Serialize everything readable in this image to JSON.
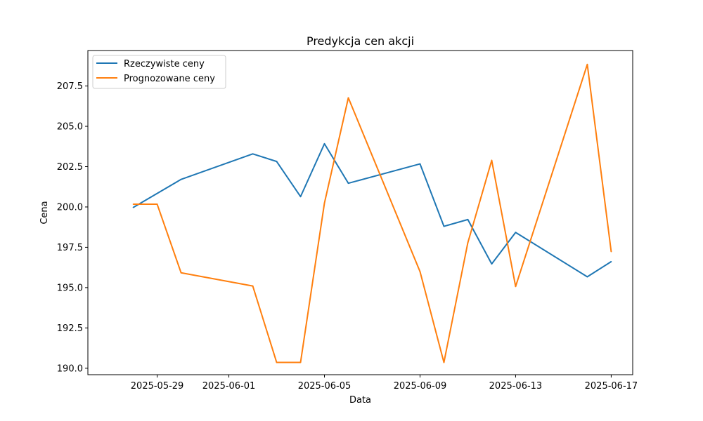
{
  "chart_data": {
    "type": "line",
    "title": "Predykcja cen akcji",
    "xlabel": "Data",
    "ylabel": "Cena",
    "xlim": [
      "2025-05-26",
      "2025-06-18"
    ],
    "ylim": [
      189.6,
      209.7
    ],
    "x_ticks": [
      "2025-05-29",
      "2025-06-01",
      "2025-06-05",
      "2025-06-09",
      "2025-06-13",
      "2025-06-17"
    ],
    "y_ticks": [
      "190.0",
      "192.5",
      "195.0",
      "197.5",
      "200.0",
      "202.5",
      "205.0",
      "207.5"
    ],
    "grid": false,
    "legend_position": "top-left",
    "series": [
      {
        "name": "Rzeczywiste ceny",
        "color": "#1f77b4",
        "points": [
          {
            "x": "2025-05-28",
            "y": 199.97
          },
          {
            "x": "2025-05-30",
            "y": 201.71
          },
          {
            "x": "2025-06-02",
            "y": 203.29
          },
          {
            "x": "2025-06-03",
            "y": 202.82
          },
          {
            "x": "2025-06-04",
            "y": 200.64
          },
          {
            "x": "2025-06-05",
            "y": 203.92
          },
          {
            "x": "2025-06-06",
            "y": 201.47
          },
          {
            "x": "2025-06-09",
            "y": 202.67
          },
          {
            "x": "2025-06-10",
            "y": 198.8
          },
          {
            "x": "2025-06-11",
            "y": 199.22
          },
          {
            "x": "2025-06-12",
            "y": 196.47
          },
          {
            "x": "2025-06-13",
            "y": 198.42
          },
          {
            "x": "2025-06-16",
            "y": 195.67
          },
          {
            "x": "2025-06-17",
            "y": 196.61
          }
        ]
      },
      {
        "name": "Prognozowane ceny",
        "color": "#ff7f0e",
        "points": [
          {
            "x": "2025-05-28",
            "y": 200.17
          },
          {
            "x": "2025-05-29",
            "y": 200.17
          },
          {
            "x": "2025-05-30",
            "y": 195.92
          },
          {
            "x": "2025-06-02",
            "y": 195.1
          },
          {
            "x": "2025-06-03",
            "y": 190.36
          },
          {
            "x": "2025-06-04",
            "y": 190.36
          },
          {
            "x": "2025-06-05",
            "y": 200.24
          },
          {
            "x": "2025-06-06",
            "y": 206.77
          },
          {
            "x": "2025-06-09",
            "y": 195.99
          },
          {
            "x": "2025-06-10",
            "y": 190.36
          },
          {
            "x": "2025-06-11",
            "y": 197.78
          },
          {
            "x": "2025-06-12",
            "y": 202.89
          },
          {
            "x": "2025-06-13",
            "y": 195.07
          },
          {
            "x": "2025-06-16",
            "y": 208.84
          },
          {
            "x": "2025-06-17",
            "y": 197.23
          }
        ]
      }
    ]
  }
}
